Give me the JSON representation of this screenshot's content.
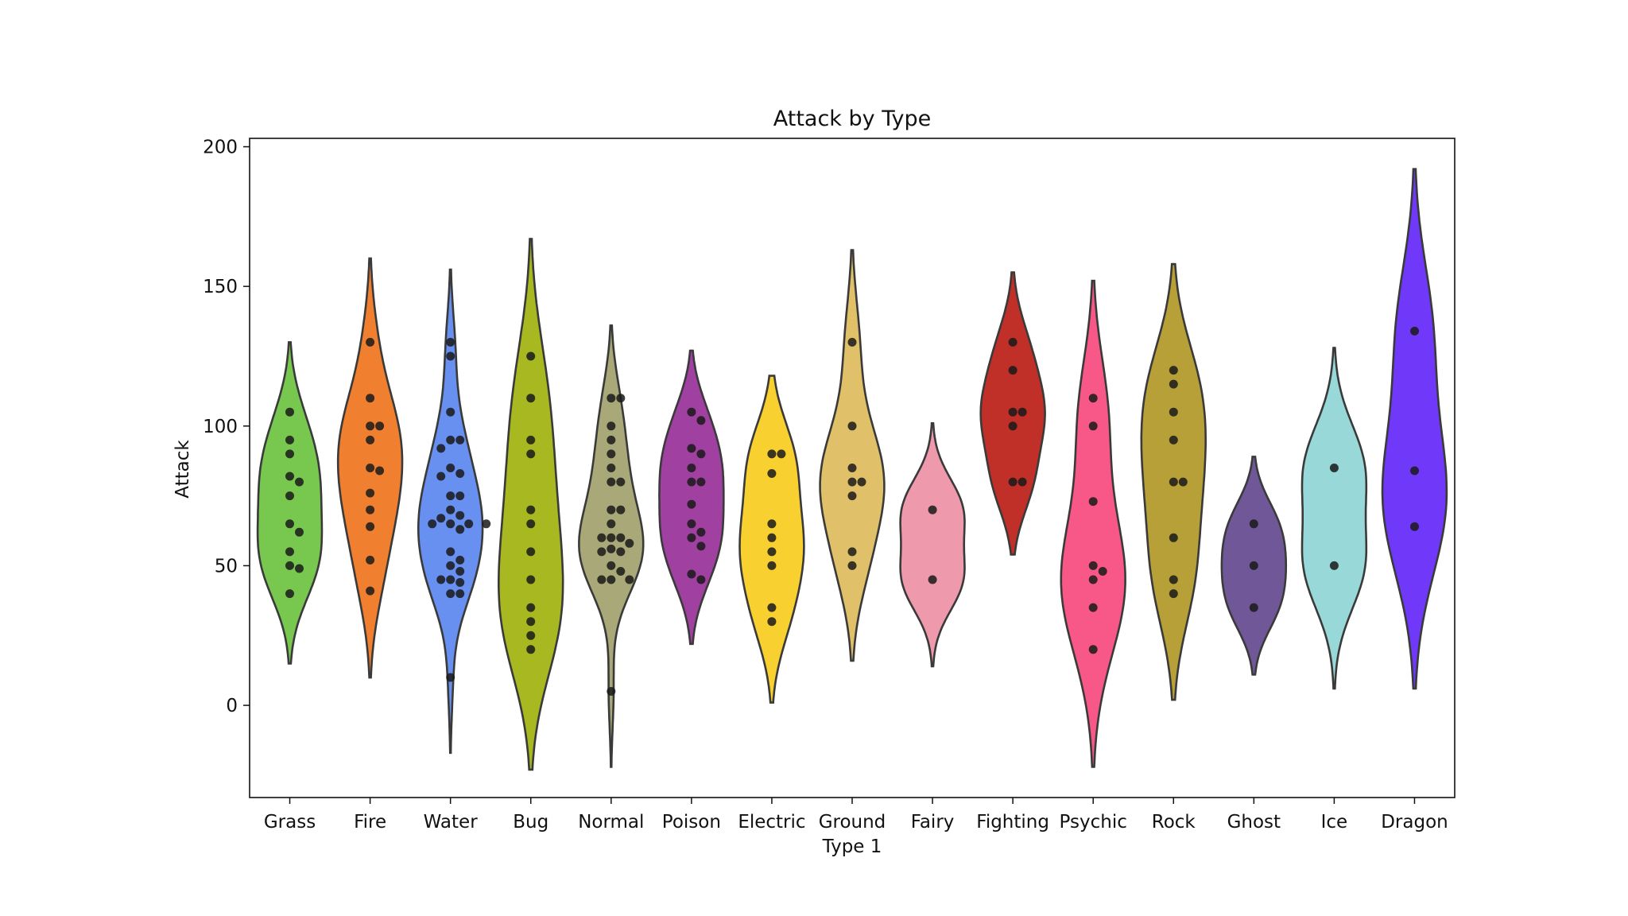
{
  "chart_data": {
    "type": "violin",
    "title": "Attack by Type",
    "xlabel": "Type 1",
    "ylabel": "Attack",
    "ylim": [
      -33,
      203
    ],
    "yticks": [
      0,
      50,
      100,
      150,
      200
    ],
    "grid": false,
    "categories": [
      {
        "name": "Grass",
        "color": "#78c850",
        "min": 15,
        "max": 130,
        "points": [
          105,
          95,
          90,
          82,
          80,
          75,
          65,
          62,
          55,
          50,
          49,
          40
        ]
      },
      {
        "name": "Fire",
        "color": "#f08030",
        "min": 10,
        "max": 160,
        "points": [
          130,
          110,
          100,
          100,
          95,
          85,
          84,
          76,
          70,
          64,
          52,
          41
        ]
      },
      {
        "name": "Water",
        "color": "#6890f0",
        "min": -17,
        "max": 156,
        "points": [
          130,
          125,
          105,
          95,
          95,
          92,
          85,
          83,
          82,
          75,
          75,
          70,
          68,
          67,
          65,
          65,
          65,
          65,
          63,
          55,
          52,
          50,
          48,
          45,
          45,
          44,
          40,
          40,
          10
        ]
      },
      {
        "name": "Bug",
        "color": "#a8b820",
        "min": -23,
        "max": 167,
        "points": [
          125,
          110,
          95,
          90,
          70,
          65,
          55,
          45,
          35,
          30,
          25,
          20
        ]
      },
      {
        "name": "Normal",
        "color": "#a8a878",
        "min": -22,
        "max": 136,
        "points": [
          110,
          110,
          100,
          95,
          90,
          85,
          80,
          80,
          70,
          70,
          65,
          60,
          60,
          60,
          58,
          56,
          55,
          55,
          50,
          48,
          45,
          45,
          45,
          5
        ]
      },
      {
        "name": "Poison",
        "color": "#a040a0",
        "min": 22,
        "max": 127,
        "points": [
          105,
          102,
          92,
          90,
          85,
          80,
          80,
          72,
          65,
          62,
          60,
          57,
          47,
          45
        ]
      },
      {
        "name": "Electric",
        "color": "#f8d030",
        "min": 1,
        "max": 118,
        "points": [
          90,
          90,
          83,
          65,
          60,
          55,
          50,
          35,
          30
        ]
      },
      {
        "name": "Ground",
        "color": "#e0c068",
        "min": 16,
        "max": 163,
        "points": [
          130,
          100,
          85,
          80,
          80,
          75,
          55,
          50
        ]
      },
      {
        "name": "Fairy",
        "color": "#ee99ac",
        "min": 14,
        "max": 101,
        "points": [
          70,
          45
        ]
      },
      {
        "name": "Fighting",
        "color": "#c03028",
        "min": 54,
        "max": 155,
        "points": [
          130,
          120,
          105,
          105,
          100,
          80,
          80
        ]
      },
      {
        "name": "Psychic",
        "color": "#f85888",
        "min": -22,
        "max": 152,
        "points": [
          110,
          100,
          73,
          50,
          48,
          45,
          35,
          20
        ]
      },
      {
        "name": "Rock",
        "color": "#b8a038",
        "min": 2,
        "max": 158,
        "points": [
          120,
          115,
          105,
          95,
          80,
          80,
          60,
          45,
          40
        ]
      },
      {
        "name": "Ghost",
        "color": "#705898",
        "min": 11,
        "max": 89,
        "points": [
          65,
          50,
          35
        ]
      },
      {
        "name": "Ice",
        "color": "#98d8d8",
        "min": 6,
        "max": 128,
        "points": [
          85,
          50
        ]
      },
      {
        "name": "Dragon",
        "color": "#7038f8",
        "min": 6,
        "max": 192,
        "points": [
          134,
          84,
          64
        ]
      }
    ]
  }
}
